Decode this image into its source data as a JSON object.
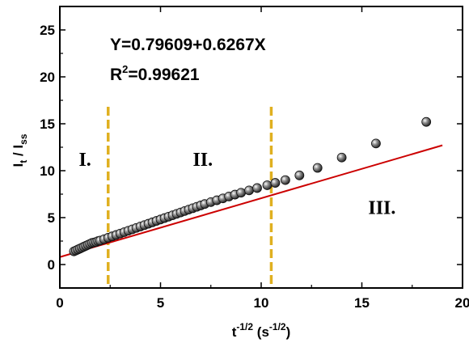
{
  "chart_data": {
    "type": "scatter",
    "xlim": [
      0,
      20
    ],
    "ylim": [
      -2.5,
      27.5
    ],
    "x_ticks": [
      "0",
      "5",
      "10",
      "15",
      "20"
    ],
    "y_ticks": [
      "0",
      "5",
      "10",
      "15",
      "20",
      "25"
    ],
    "ylabel": {
      "main": "I",
      "sub1": "t",
      "sep": " / I",
      "sub2": "ss"
    },
    "xlabel": {
      "main": "t",
      "sup1": "-1/2",
      "mid": " (s",
      "sup2": "-1/2",
      "end": ")"
    },
    "equation": "Y=0.79609+0.6267X",
    "r2": {
      "prefix": "R",
      "sup": "2",
      "value": "=0.99621"
    },
    "regions": [
      {
        "label": "I.",
        "x": 1.25,
        "y": 10.5
      },
      {
        "label": "II.",
        "x": 7.1,
        "y": 10.5
      },
      {
        "label": "III.",
        "x": 16.0,
        "y": 5.4
      }
    ],
    "dividers": [
      2.4,
      10.5
    ],
    "fit": {
      "intercept": 0.79609,
      "slope": 0.6267,
      "x_range": [
        0,
        19
      ],
      "color": "#cc0000"
    },
    "points": {
      "x": [
        0.7,
        0.8,
        0.9,
        1.0,
        1.1,
        1.2,
        1.3,
        1.4,
        1.5,
        1.6,
        1.7,
        1.8,
        1.9,
        2.0,
        2.2,
        2.4,
        2.6,
        2.8,
        3.0,
        3.2,
        3.4,
        3.6,
        3.8,
        4.0,
        4.2,
        4.4,
        4.6,
        4.8,
        5.0,
        5.2,
        5.4,
        5.6,
        5.8,
        6.0,
        6.2,
        6.4,
        6.6,
        6.8,
        7.0,
        7.2,
        7.5,
        7.8,
        8.1,
        8.4,
        8.7,
        9.0,
        9.4,
        9.8,
        10.3,
        10.7,
        11.2,
        11.9,
        12.8,
        14.0,
        15.7,
        18.2
      ],
      "y": [
        1.4,
        1.5,
        1.6,
        1.7,
        1.8,
        1.9,
        2.0,
        2.1,
        2.2,
        2.3,
        2.35,
        2.4,
        2.5,
        2.55,
        2.7,
        2.85,
        3.0,
        3.15,
        3.3,
        3.45,
        3.6,
        3.75,
        3.9,
        4.05,
        4.2,
        4.35,
        4.5,
        4.65,
        4.8,
        4.95,
        5.1,
        5.25,
        5.4,
        5.55,
        5.7,
        5.85,
        6.0,
        6.15,
        6.3,
        6.45,
        6.65,
        6.85,
        7.05,
        7.25,
        7.45,
        7.65,
        7.9,
        8.15,
        8.45,
        8.7,
        9.0,
        9.5,
        10.3,
        11.4,
        12.9,
        15.2
      ]
    },
    "colors": {
      "divider": "#e0b020",
      "axis": "#000000",
      "marker_fill": "#5a5a5a"
    }
  }
}
